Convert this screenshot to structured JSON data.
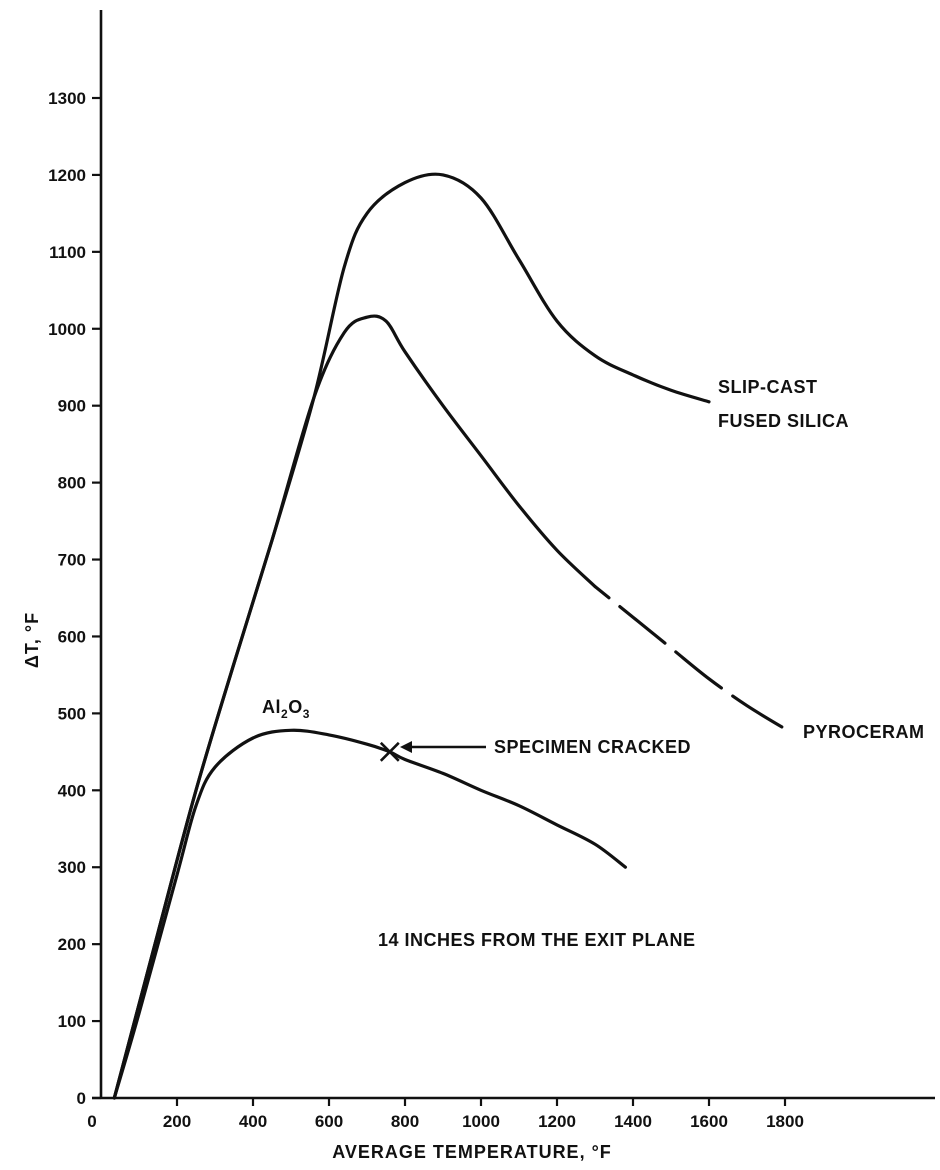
{
  "chart_data": {
    "type": "line",
    "title": "",
    "xlabel": "AVERAGE TEMPERATURE, °F",
    "ylabel": "ΔT, °F",
    "xlim": [
      0,
      2200
    ],
    "ylim": [
      0,
      1400
    ],
    "x_ticks": [
      0,
      200,
      400,
      600,
      800,
      1000,
      1200,
      1400,
      1600,
      1800
    ],
    "y_ticks": [
      0,
      100,
      200,
      300,
      400,
      500,
      600,
      700,
      800,
      900,
      1000,
      1100,
      1200,
      1300
    ],
    "grid": false,
    "series": [
      {
        "name": "SLIP-CAST FUSED SILICA",
        "x": [
          35,
          150,
          250,
          350,
          450,
          560,
          640,
          700,
          800,
          900,
          1000,
          1100,
          1200,
          1300,
          1400,
          1500,
          1600
        ],
        "y": [
          0,
          215,
          400,
          565,
          725,
          910,
          1080,
          1150,
          1190,
          1200,
          1170,
          1090,
          1010,
          965,
          940,
          920,
          905
        ]
      },
      {
        "name": "PYROCERAM",
        "x": [
          35,
          150,
          250,
          350,
          450,
          560,
          640,
          700,
          750,
          800,
          900,
          1000,
          1100,
          1200,
          1300,
          1400,
          1500,
          1600,
          1700,
          1800,
          1820
        ],
        "y": [
          0,
          215,
          400,
          565,
          725,
          910,
          995,
          1015,
          1010,
          970,
          900,
          835,
          770,
          712,
          665,
          625,
          585,
          545,
          510,
          480,
          475
        ],
        "dashed_from_x": 1380
      },
      {
        "name": "Al₂O₃",
        "x": [
          35,
          100,
          200,
          250,
          300,
          400,
          500,
          600,
          700,
          760,
          800,
          900,
          1000,
          1100,
          1200,
          1300,
          1380
        ],
        "y": [
          0,
          110,
          290,
          380,
          430,
          468,
          478,
          472,
          460,
          450,
          440,
          422,
          400,
          380,
          355,
          330,
          300
        ]
      }
    ],
    "annotations": {
      "curve_label_silica_line1": "SLIP-CAST",
      "curve_label_silica_line2": "FUSED SILICA",
      "curve_label_pyroceram": "PYROCERAM",
      "curve_label_al2o3_base": "Al",
      "curve_label_al2o3_sub1": "2",
      "curve_label_al2o3_mid": "O",
      "curve_label_al2o3_sub2": "3",
      "specimen_cracked": "SPECIMEN CRACKED",
      "specimen_cracked_point": {
        "x": 760,
        "y": 450
      },
      "location_note": "14 INCHES FROM THE EXIT PLANE"
    }
  }
}
